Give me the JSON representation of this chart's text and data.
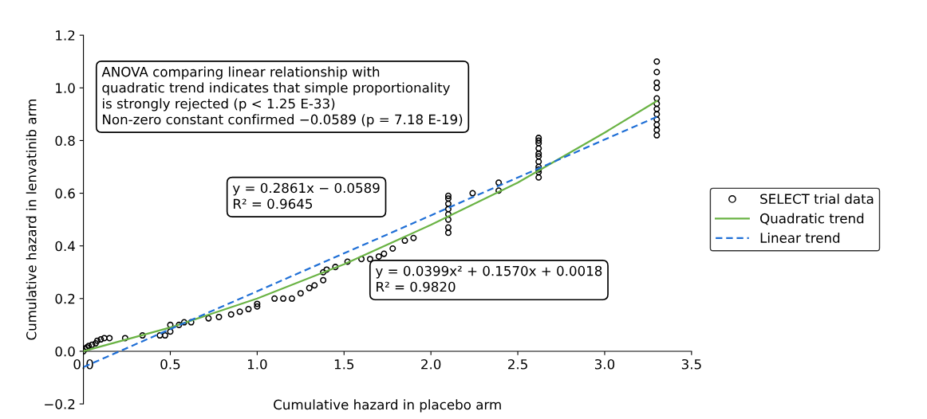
{
  "chart_data": {
    "type": "scatter",
    "xlabel": "Cumulative hazard in placebo arm",
    "ylabel": "Cumulative hazard in lenvatinib arm",
    "xlim": [
      0,
      3.5
    ],
    "ylim": [
      -0.2,
      1.2
    ],
    "xticks": [
      {
        "value": 0,
        "label": "0.0"
      },
      {
        "value": 0.5,
        "label": "0.5"
      },
      {
        "value": 1,
        "label": "1.0"
      },
      {
        "value": 1.5,
        "label": "1.5"
      },
      {
        "value": 2,
        "label": "2.0"
      },
      {
        "value": 2.5,
        "label": "2.5"
      },
      {
        "value": 3,
        "label": "3.0"
      },
      {
        "value": 3.5,
        "label": "3.5"
      }
    ],
    "yticks": [
      {
        "value": -0.2,
        "label": "−0.2"
      },
      {
        "value": 0,
        "label": "0.0"
      },
      {
        "value": 0.2,
        "label": "0.2"
      },
      {
        "value": 0.4,
        "label": "0.4"
      },
      {
        "value": 0.6,
        "label": "0.6"
      },
      {
        "value": 0.8,
        "label": "0.8"
      },
      {
        "value": 1,
        "label": "1.0"
      },
      {
        "value": 1.2,
        "label": "1.2"
      }
    ],
    "grid": false,
    "legend": "right",
    "series": [
      {
        "name": "SELECT trial data",
        "marker": "circle",
        "color": "#000000",
        "x": [
          0,
          0.01,
          0.02,
          0.03,
          0.05,
          0.07,
          0.08,
          0.1,
          0.12,
          0.15,
          0.24,
          0.34,
          0.44,
          0.47,
          0.5,
          0.5,
          0.55,
          0.58,
          0.62,
          0.72,
          0.78,
          0.85,
          0.9,
          0.95,
          1.0,
          1.0,
          1.1,
          1.15,
          1.2,
          1.25,
          1.3,
          1.33,
          1.38,
          1.38,
          1.4,
          1.45,
          1.52,
          1.6,
          1.65,
          1.7,
          1.73,
          1.78,
          1.85,
          1.9,
          2.1,
          2.1,
          2.1,
          2.1,
          2.1,
          2.1,
          2.1,
          2.1,
          2.24,
          2.39,
          2.39,
          2.62,
          2.62,
          2.62,
          2.62,
          2.62,
          2.62,
          2.62,
          2.62,
          2.62,
          2.62,
          2.62,
          3.3,
          3.3,
          3.3,
          3.3,
          3.3,
          3.3,
          3.3,
          3.3,
          3.3,
          3.3,
          3.3,
          3.3
        ],
        "values": [
          0,
          0.01,
          0.015,
          0.02,
          0.025,
          0.03,
          0.04,
          0.045,
          0.05,
          0.05,
          0.05,
          0.06,
          0.06,
          0.06,
          0.075,
          0.1,
          0.1,
          0.11,
          0.11,
          0.125,
          0.13,
          0.14,
          0.15,
          0.16,
          0.17,
          0.18,
          0.2,
          0.2,
          0.2,
          0.22,
          0.24,
          0.25,
          0.27,
          0.3,
          0.31,
          0.32,
          0.34,
          0.35,
          0.35,
          0.36,
          0.37,
          0.39,
          0.42,
          0.43,
          0.45,
          0.47,
          0.5,
          0.52,
          0.54,
          0.56,
          0.58,
          0.59,
          0.6,
          0.61,
          0.64,
          0.66,
          0.68,
          0.69,
          0.7,
          0.72,
          0.74,
          0.75,
          0.77,
          0.79,
          0.8,
          0.81,
          0.82,
          0.84,
          0.86,
          0.88,
          0.9,
          0.92,
          0.94,
          0.96,
          1.0,
          1.02,
          1.06,
          1.1
        ]
      },
      {
        "name": "Quadratic trend",
        "type": "line",
        "line_style": "solid",
        "color": "#6ab344",
        "x": [
          0,
          0.5,
          1,
          1.5,
          2,
          2.5,
          3,
          3.3
        ],
        "values": [
          0.0,
          0.09,
          0.2,
          0.33,
          0.48,
          0.64,
          0.83,
          0.95
        ]
      },
      {
        "name": "Linear trend",
        "type": "line",
        "line_style": "dashed",
        "color": "#1f6fd6",
        "x": [
          0,
          3.3
        ],
        "values": [
          -0.06,
          0.89
        ]
      }
    ],
    "annotations": [
      "ANOVA comparing linear relationship with\nquadratic trend indicates that simple proportionality\nis strongly rejected (p < 1.25 E-33)\nNon-zero constant confirmed −0.0589 (p = 7.18 E-19)",
      "y = 0.2861x − 0.0589\nR² = 0.9645",
      "y = 0.0399x² + 0.1570x + 0.0018\nR² = 0.9820"
    ]
  }
}
